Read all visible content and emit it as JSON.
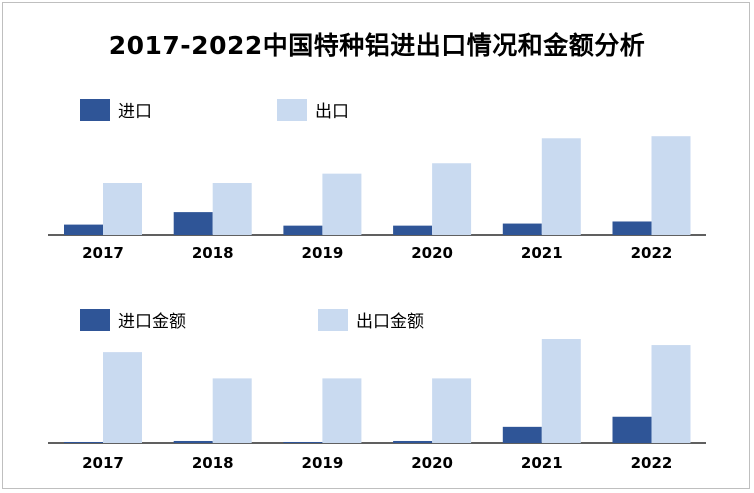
{
  "title": "2017-2022中国特种铝进出口情况和金额分析",
  "colors": {
    "import": "#2f5597",
    "export": "#c9daf0",
    "axis": "#000000"
  },
  "chart_data": [
    {
      "type": "bar",
      "title": "",
      "categories": [
        "2017",
        "2018",
        "2019",
        "2020",
        "2021",
        "2022"
      ],
      "series": [
        {
          "name": "进口",
          "values": [
            10,
            22,
            9,
            9,
            11,
            13
          ]
        },
        {
          "name": "出口",
          "values": [
            50,
            50,
            59,
            69,
            93,
            95
          ]
        }
      ],
      "ylim": [
        0,
        100
      ],
      "legend": "top-left",
      "grid": false
    },
    {
      "type": "bar",
      "title": "",
      "categories": [
        "2017",
        "2018",
        "2019",
        "2020",
        "2021",
        "2022"
      ],
      "series": [
        {
          "name": "进口金额",
          "values": [
            1,
            2,
            1,
            2,
            16,
            26
          ]
        },
        {
          "name": "出口金额",
          "values": [
            90,
            64,
            64,
            64,
            103,
            97
          ]
        }
      ],
      "ylim": [
        0,
        103
      ],
      "legend": "top-left",
      "grid": false
    }
  ]
}
